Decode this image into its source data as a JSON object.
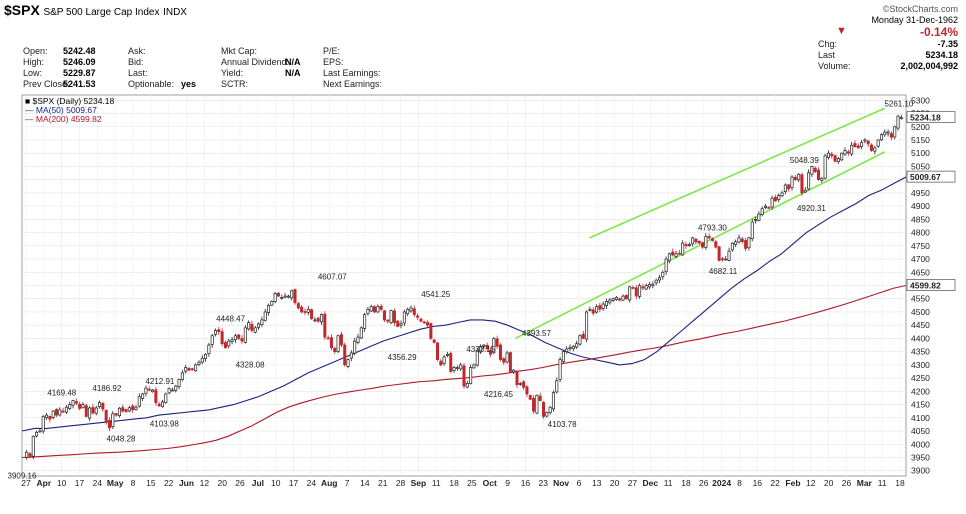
{
  "header": {
    "symbol": "$SPX",
    "name": "S&P 500 Large Cap Index",
    "exchange": "INDX",
    "logo": "©StockCharts.com",
    "date": "Monday  31-Dec-1962",
    "chg_pct": "-0.14%",
    "chg": "-7.35",
    "last": "5234.18",
    "volume": "2,002,004,992",
    "left_fields": [
      {
        "label": "Open:",
        "value": "5242.48"
      },
      {
        "label": "High:",
        "value": "5246.09"
      },
      {
        "label": "Low:",
        "value": "5229.87"
      },
      {
        "label": "Prev Close:",
        "value": "5241.53"
      }
    ],
    "col2_labels": [
      "Ask:",
      "Bid:",
      "Last:",
      "Optionable:"
    ],
    "col2_values": [
      "",
      "",
      "",
      "yes"
    ],
    "col3_labels": [
      "Mkt Cap:",
      "Annual Dividend:",
      "Yield:",
      "SCTR:"
    ],
    "col3_values": [
      "",
      "N/A",
      "N/A",
      ""
    ],
    "col4_labels": [
      "P/E:",
      "EPS:",
      "Last Earnings:",
      "Next Earnings:"
    ],
    "col5_labels": [
      "Chg:",
      "Last",
      "Volume:"
    ]
  },
  "legend": [
    {
      "text": "■ $SPX (Daily) 5234.18",
      "color": "#000000"
    },
    {
      "text": "— MA(50) 5009.67",
      "color": "#1a237e"
    },
    {
      "text": "— MA(200) 4599.82",
      "color": "#b0182a"
    }
  ],
  "price_tags": {
    "last": "5234.18",
    "ma50": "5009.67",
    "ma200": "4599.82",
    "high": "5261.10"
  },
  "chart_data": {
    "type": "candlestick",
    "ylim": [
      3880,
      5320
    ],
    "y_ticks": [
      3900,
      3950,
      4000,
      4050,
      4100,
      4150,
      4200,
      4250,
      4300,
      4350,
      4400,
      4450,
      4500,
      4550,
      4600,
      4650,
      4700,
      4750,
      4800,
      4850,
      4900,
      4950,
      5000,
      5050,
      5100,
      5150,
      5200,
      5250,
      5300
    ],
    "x_labels": [
      "27",
      "Apr",
      "10",
      "17",
      "24",
      "May",
      "8",
      "15",
      "22",
      "Jun",
      "12",
      "20",
      "26",
      "Jul",
      "10",
      "17",
      "24",
      "Aug",
      "7",
      "14",
      "21",
      "28",
      "Sep",
      "11",
      "18",
      "25",
      "Oct",
      "9",
      "16",
      "23",
      "Nov",
      "6",
      "13",
      "20",
      "27",
      "Dec",
      "11",
      "18",
      "26",
      "2024",
      "8",
      "16",
      "22",
      "Feb",
      "12",
      "20",
      "26",
      "Mar",
      "11",
      "18"
    ],
    "bold_x_labels": [
      "Apr",
      "May",
      "Jun",
      "Jul",
      "Aug",
      "Sep",
      "Oct",
      "Nov",
      "Dec",
      "2024",
      "Feb",
      "Mar"
    ],
    "closes": [
      3970,
      3955,
      4030,
      4045,
      4050,
      4105,
      4110,
      4095,
      4125,
      4110,
      4130,
      4125,
      4140,
      4150,
      4165,
      4155,
      4135,
      4150,
      4105,
      4137,
      4118,
      4137,
      4158,
      4133,
      4085,
      4062,
      4115,
      4110,
      4136,
      4125,
      4124,
      4138,
      4130,
      4140,
      4180,
      4190,
      4212,
      4205,
      4205,
      4157,
      4145,
      4160,
      4190,
      4210,
      4205,
      4220,
      4245,
      4270,
      4290,
      4280,
      4282,
      4300,
      4310,
      4325,
      4340,
      4375,
      4410,
      4430,
      4425,
      4380,
      4365,
      4390,
      4395,
      4410,
      4400,
      4390,
      4440,
      4460,
      4430,
      4440,
      4455,
      4470,
      4500,
      4525,
      4540,
      4570,
      4560,
      4555,
      4560,
      4560,
      4580,
      4535,
      4515,
      4500,
      4500,
      4510,
      4475,
      4470,
      4465,
      4490,
      4405,
      4400,
      4365,
      4350,
      4410,
      4375,
      4300,
      4320,
      4345,
      4390,
      4405,
      4440,
      4490,
      4510,
      4520,
      4500,
      4520,
      4510,
      4470,
      4465,
      4505,
      4460,
      4445,
      4455,
      4500,
      4510,
      4515,
      4490,
      4480,
      4465,
      4460,
      4450,
      4400,
      4385,
      4320,
      4300,
      4330,
      4340,
      4275,
      4290,
      4290,
      4300,
      4220,
      4230,
      4290,
      4300,
      4355,
      4370,
      4375,
      4360,
      4340,
      4400,
      4370,
      4320,
      4310,
      4345,
      4275,
      4280,
      4225,
      4230,
      4215,
      4190,
      4170,
      4125,
      4185,
      4165,
      4105,
      4120,
      4140,
      4195,
      4240,
      4320,
      4350,
      4360,
      4365,
      4370,
      4380,
      4410,
      4400,
      4500,
      4510,
      4495,
      4520,
      4510,
      4530,
      4540,
      4545,
      4550,
      4555,
      4545,
      4560,
      4550,
      4595,
      4590,
      4560,
      4600,
      4590,
      4600,
      4604,
      4605,
      4620,
      4630,
      4650,
      4700,
      4720,
      4715,
      4720,
      4720,
      4760,
      4750,
      4755,
      4780,
      4765,
      4760,
      4745,
      4785,
      4780,
      4770,
      4745,
      4695,
      4697,
      4700,
      4730,
      4760,
      4765,
      4780,
      4766,
      4740,
      4780,
      4840,
      4850,
      4870,
      4890,
      4900,
      4895,
      4930,
      4920,
      4940,
      4950,
      4980,
      4965,
      5010,
      5000,
      5020,
      4950,
      4960,
      5026,
      5050,
      5030,
      5000,
      5005,
      5090,
      5100,
      5090,
      5070,
      5080,
      5100,
      5110,
      5100,
      5130,
      5125,
      5120,
      5140,
      5150,
      5135,
      5110,
      5120,
      5150,
      5170,
      5180,
      5180,
      5160,
      5200,
      5240,
      5235
    ],
    "ma50": [
      4050,
      4060,
      4060,
      4065,
      4070,
      4075,
      4080,
      4085,
      4090,
      4095,
      4100,
      4110,
      4115,
      4120,
      4125,
      4130,
      4140,
      4150,
      4165,
      4180,
      4200,
      4220,
      4245,
      4270,
      4290,
      4310,
      4330,
      4350,
      4370,
      4390,
      4405,
      4420,
      4435,
      4445,
      4450,
      4460,
      4470,
      4470,
      4465,
      4450,
      4430,
      4410,
      4385,
      4365,
      4345,
      4330,
      4320,
      4310,
      4300,
      4305,
      4320,
      4350,
      4390,
      4430,
      4470,
      4510,
      4550,
      4590,
      4625,
      4655,
      4690,
      4720,
      4760,
      4800,
      4830,
      4860,
      4885,
      4910,
      4940,
      4960,
      4985,
      5010
    ],
    "ma200": [
      3950,
      3952,
      3955,
      3958,
      3960,
      3963,
      3966,
      3968,
      3970,
      3973,
      3976,
      3980,
      3984,
      3990,
      3997,
      4005,
      4015,
      4030,
      4050,
      4070,
      4095,
      4120,
      4140,
      4155,
      4168,
      4180,
      4190,
      4198,
      4205,
      4212,
      4220,
      4226,
      4232,
      4237,
      4240,
      4245,
      4248,
      4252,
      4258,
      4262,
      4268,
      4276,
      4282,
      4290,
      4300,
      4308,
      4315,
      4322,
      4330,
      4338,
      4347,
      4355,
      4362,
      4370,
      4380,
      4390,
      4398,
      4408,
      4418,
      4426,
      4436,
      4446,
      4456,
      4466,
      4478,
      4490,
      4503,
      4516,
      4530,
      4545,
      4560,
      4575,
      4590,
      4600
    ],
    "channel_upper": {
      "from": [
        0.642,
        4780
      ],
      "to": [
        0.976,
        5270
      ]
    },
    "channel_lower": {
      "from": [
        0.558,
        4400
      ],
      "to": [
        0.976,
        5105
      ]
    },
    "peak_labels": [
      {
        "text": "3909.16",
        "x": 0.0,
        "y": 3909.16,
        "pos": "below"
      },
      {
        "text": "4169.48",
        "x": 0.045,
        "y": 4169.48,
        "pos": "above"
      },
      {
        "text": "4186.92",
        "x": 0.096,
        "y": 4186.92,
        "pos": "above"
      },
      {
        "text": "4048.28",
        "x": 0.112,
        "y": 4048.28,
        "pos": "below"
      },
      {
        "text": "4103.98",
        "x": 0.161,
        "y": 4103.98,
        "pos": "below"
      },
      {
        "text": "4212.91",
        "x": 0.156,
        "y": 4212.91,
        "pos": "above"
      },
      {
        "text": "4448.47",
        "x": 0.236,
        "y": 4448.47,
        "pos": "above"
      },
      {
        "text": "4328.08",
        "x": 0.258,
        "y": 4328.08,
        "pos": "below"
      },
      {
        "text": "4607.07",
        "x": 0.351,
        "y": 4607.07,
        "pos": "above"
      },
      {
        "text": "4356.29",
        "x": 0.43,
        "y": 4356.29,
        "pos": "below"
      },
      {
        "text": "4541.25",
        "x": 0.468,
        "y": 4541.25,
        "pos": "above"
      },
      {
        "text": "4333.15",
        "x": 0.519,
        "y": 4333.15,
        "pos": "above"
      },
      {
        "text": "4216.45",
        "x": 0.539,
        "y": 4216.45,
        "pos": "below"
      },
      {
        "text": "4393.57",
        "x": 0.582,
        "y": 4393.57,
        "pos": "above"
      },
      {
        "text": "4103.78",
        "x": 0.611,
        "y": 4103.78,
        "pos": "below"
      },
      {
        "text": "4793.30",
        "x": 0.781,
        "y": 4793.3,
        "pos": "above"
      },
      {
        "text": "4682.11",
        "x": 0.793,
        "y": 4682.11,
        "pos": "below"
      },
      {
        "text": "5048.39",
        "x": 0.885,
        "y": 5048.39,
        "pos": "above"
      },
      {
        "text": "4920.31",
        "x": 0.893,
        "y": 4920.31,
        "pos": "below"
      },
      {
        "text": "5261.10",
        "x": 0.992,
        "y": 5261.1,
        "pos": "above"
      }
    ]
  }
}
